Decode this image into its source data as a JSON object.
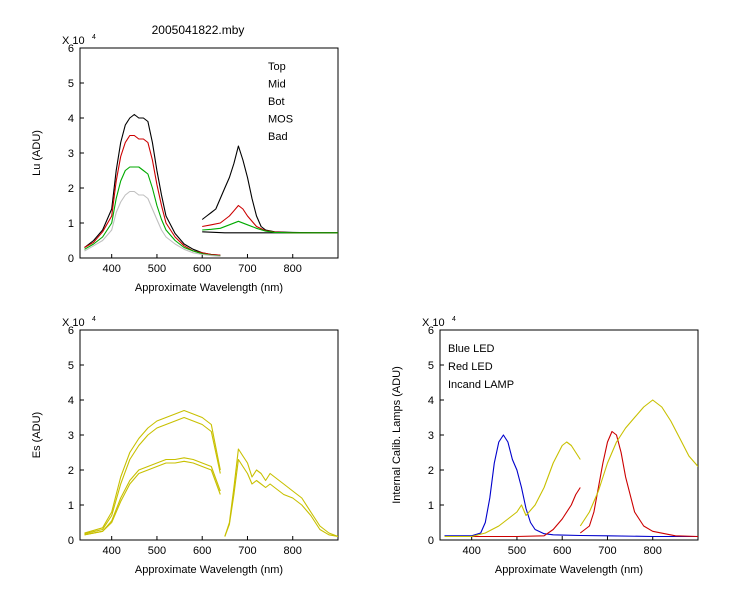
{
  "window": {
    "title": "2005041822.mby"
  },
  "chart_data": [
    {
      "id": "lu",
      "type": "line",
      "xlabel": "Approximate Wavelength (nm)",
      "ylabel": "Lu (ADU)",
      "exponent_label": "X 10",
      "exponent_sup": "4",
      "xlim": [
        330,
        900
      ],
      "ylim": [
        0,
        6
      ],
      "xticks": [
        400,
        500,
        600,
        700,
        800
      ],
      "yticks": [
        0,
        1,
        2,
        3,
        4,
        5,
        6
      ],
      "legend": {
        "placement": "top-right"
      },
      "series": [
        {
          "name": "Top",
          "color": "#000000",
          "segments": [
            {
              "x": [
                340,
                360,
                380,
                400,
                410,
                420,
                430,
                440,
                450,
                460,
                470,
                480,
                490,
                500,
                510,
                520,
                540,
                560,
                580,
                600,
                620,
                640
              ],
              "y": [
                0.3,
                0.5,
                0.8,
                1.4,
                2.5,
                3.3,
                3.8,
                4.0,
                4.1,
                4.0,
                4.0,
                3.9,
                3.3,
                2.5,
                1.8,
                1.2,
                0.7,
                0.4,
                0.25,
                0.15,
                0.1,
                0.08
              ]
            },
            {
              "x": [
                600,
                610,
                620,
                630,
                640,
                650,
                660,
                670,
                680,
                690,
                700,
                710,
                720,
                730,
                740,
                760,
                800,
                850,
                900
              ],
              "y": [
                1.1,
                1.2,
                1.3,
                1.4,
                1.7,
                2.0,
                2.3,
                2.7,
                3.2,
                2.8,
                2.3,
                1.7,
                1.2,
                0.9,
                0.8,
                0.75,
                0.73,
                0.72,
                0.72
              ]
            },
            {
              "x": [
                600,
                650,
                700,
                750,
                800,
                850,
                900
              ],
              "y": [
                0.75,
                0.72,
                0.72,
                0.72,
                0.72,
                0.72,
                0.72
              ]
            }
          ]
        },
        {
          "name": "Mid",
          "color": "#cc0000",
          "segments": [
            {
              "x": [
                340,
                360,
                380,
                400,
                410,
                420,
                430,
                440,
                450,
                460,
                470,
                480,
                490,
                500,
                510,
                520,
                540,
                560,
                580,
                600,
                620,
                640
              ],
              "y": [
                0.3,
                0.45,
                0.75,
                1.2,
                2.2,
                2.9,
                3.3,
                3.5,
                3.5,
                3.4,
                3.4,
                3.3,
                2.8,
                2.1,
                1.5,
                1.0,
                0.6,
                0.35,
                0.2,
                0.15,
                0.1,
                0.08
              ]
            },
            {
              "x": [
                600,
                620,
                640,
                660,
                670,
                680,
                690,
                700,
                720,
                740,
                760,
                800,
                900
              ],
              "y": [
                0.9,
                0.95,
                1.0,
                1.2,
                1.35,
                1.5,
                1.4,
                1.2,
                0.9,
                0.78,
                0.74,
                0.72,
                0.72
              ]
            }
          ]
        },
        {
          "name": "Bot",
          "color": "#00aa00",
          "segments": [
            {
              "x": [
                340,
                360,
                380,
                400,
                410,
                420,
                430,
                440,
                450,
                460,
                470,
                480,
                490,
                500,
                510,
                520,
                540,
                560,
                580,
                600,
                620,
                640
              ],
              "y": [
                0.25,
                0.4,
                0.6,
                1.0,
                1.7,
                2.2,
                2.5,
                2.6,
                2.6,
                2.6,
                2.5,
                2.4,
                2.0,
                1.5,
                1.1,
                0.8,
                0.5,
                0.3,
                0.2,
                0.12,
                0.08,
                0.06
              ]
            },
            {
              "x": [
                600,
                620,
                640,
                660,
                680,
                700,
                720,
                740,
                760,
                800,
                900
              ],
              "y": [
                0.8,
                0.82,
                0.85,
                0.95,
                1.05,
                0.95,
                0.85,
                0.77,
                0.73,
                0.72,
                0.72
              ]
            }
          ]
        },
        {
          "name": "MOS",
          "color": "#0000cc",
          "segments": []
        },
        {
          "name": "Bad",
          "color": "#c0c0c0",
          "segments": [
            {
              "x": [
                340,
                360,
                380,
                400,
                410,
                420,
                430,
                440,
                450,
                460,
                470,
                480,
                490,
                500,
                510,
                520,
                540,
                560,
                580,
                600,
                620,
                640
              ],
              "y": [
                0.2,
                0.35,
                0.5,
                0.8,
                1.3,
                1.6,
                1.8,
                1.9,
                1.9,
                1.8,
                1.8,
                1.7,
                1.4,
                1.1,
                0.8,
                0.6,
                0.4,
                0.25,
                0.15,
                0.1,
                0.07,
                0.05
              ]
            }
          ]
        }
      ]
    },
    {
      "id": "es",
      "type": "line",
      "xlabel": "Approximate Wavelength (nm)",
      "ylabel": "Es  (ADU)",
      "exponent_label": "X 10",
      "exponent_sup": "4",
      "xlim": [
        330,
        900
      ],
      "ylim": [
        0,
        6
      ],
      "xticks": [
        400,
        500,
        600,
        700,
        800
      ],
      "yticks": [
        0,
        1,
        2,
        3,
        4,
        5,
        6
      ],
      "series": [
        {
          "color": "#c8c000",
          "segments": [
            {
              "x": [
                340,
                380,
                400,
                420,
                440,
                460,
                480,
                500,
                520,
                540,
                560,
                580,
                600,
                620,
                640
              ],
              "y": [
                0.2,
                0.35,
                0.8,
                1.8,
                2.5,
                2.9,
                3.2,
                3.4,
                3.5,
                3.6,
                3.7,
                3.6,
                3.5,
                3.3,
                2.0
              ]
            },
            {
              "x": [
                340,
                380,
                400,
                420,
                440,
                460,
                480,
                500,
                520,
                540,
                560,
                580,
                600,
                620,
                640
              ],
              "y": [
                0.18,
                0.3,
                0.7,
                1.6,
                2.3,
                2.7,
                3.0,
                3.2,
                3.3,
                3.4,
                3.5,
                3.4,
                3.3,
                3.1,
                1.9
              ]
            },
            {
              "x": [
                340,
                380,
                400,
                420,
                440,
                460,
                480,
                500,
                520,
                540,
                560,
                580,
                600,
                620,
                640
              ],
              "y": [
                0.15,
                0.25,
                0.55,
                1.2,
                1.7,
                2.0,
                2.1,
                2.2,
                2.3,
                2.3,
                2.35,
                2.3,
                2.2,
                2.1,
                1.4
              ]
            },
            {
              "x": [
                340,
                380,
                400,
                420,
                440,
                460,
                480,
                500,
                520,
                540,
                560,
                580,
                600,
                620,
                640
              ],
              "y": [
                0.15,
                0.25,
                0.5,
                1.1,
                1.6,
                1.9,
                2.0,
                2.1,
                2.2,
                2.2,
                2.25,
                2.2,
                2.1,
                2.0,
                1.3
              ]
            },
            {
              "x": [
                650,
                660,
                670,
                680,
                690,
                700,
                710,
                720,
                730,
                740,
                750,
                760,
                780,
                800,
                820,
                840,
                860,
                880,
                900
              ],
              "y": [
                0.1,
                0.5,
                1.5,
                2.6,
                2.4,
                2.2,
                1.8,
                2.0,
                1.9,
                1.7,
                1.9,
                1.8,
                1.6,
                1.4,
                1.2,
                0.8,
                0.4,
                0.2,
                0.1
              ]
            },
            {
              "x": [
                650,
                660,
                670,
                680,
                690,
                700,
                710,
                720,
                730,
                740,
                750,
                760,
                780,
                800,
                820,
                840,
                860,
                880,
                900
              ],
              "y": [
                0.1,
                0.45,
                1.3,
                2.3,
                2.1,
                1.9,
                1.6,
                1.7,
                1.6,
                1.5,
                1.6,
                1.5,
                1.3,
                1.2,
                1.0,
                0.7,
                0.3,
                0.15,
                0.1
              ]
            }
          ]
        }
      ]
    },
    {
      "id": "lamps",
      "type": "line",
      "xlabel": "Approximate Wavelength (nm)",
      "ylabel": "Internal Calib. Lamps (ADU)",
      "exponent_label": "X 10",
      "exponent_sup": "4",
      "xlim": [
        330,
        900
      ],
      "ylim": [
        0,
        6
      ],
      "xticks": [
        400,
        500,
        600,
        700,
        800
      ],
      "yticks": [
        0,
        1,
        2,
        3,
        4,
        5,
        6
      ],
      "legend": {
        "placement": "top-left"
      },
      "series": [
        {
          "name": "Blue LED",
          "color": "#0000cc",
          "segments": [
            {
              "x": [
                340,
                400,
                420,
                430,
                440,
                450,
                460,
                470,
                480,
                490,
                500,
                510,
                520,
                530,
                540,
                560,
                580,
                600,
                640,
                700,
                800,
                900
              ],
              "y": [
                0.12,
                0.12,
                0.2,
                0.5,
                1.2,
                2.2,
                2.8,
                3.0,
                2.8,
                2.3,
                2.0,
                1.5,
                0.9,
                0.5,
                0.3,
                0.18,
                0.15,
                0.14,
                0.13,
                0.12,
                0.1,
                0.1
              ]
            }
          ]
        },
        {
          "name": "Red LED",
          "color": "#cc0000",
          "segments": [
            {
              "x": [
                340,
                400,
                500,
                560,
                580,
                600,
                620,
                630,
                640
              ],
              "y": [
                0.1,
                0.1,
                0.1,
                0.12,
                0.3,
                0.6,
                1.0,
                1.3,
                1.5
              ]
            },
            {
              "x": [
                640,
                660,
                670,
                680,
                690,
                700,
                710,
                720,
                730,
                740,
                760,
                780,
                800,
                850,
                900
              ],
              "y": [
                0.2,
                0.4,
                0.8,
                1.5,
                2.2,
                2.8,
                3.1,
                3.0,
                2.5,
                1.8,
                0.8,
                0.4,
                0.25,
                0.12,
                0.1
              ]
            }
          ]
        },
        {
          "name": "Incand LAMP",
          "color": "#c8c000",
          "segments": [
            {
              "x": [
                340,
                400,
                430,
                460,
                480,
                500,
                510,
                520,
                540,
                560,
                580,
                600,
                610,
                620,
                630,
                640
              ],
              "y": [
                0.1,
                0.1,
                0.2,
                0.4,
                0.6,
                0.8,
                1.0,
                0.7,
                1.0,
                1.5,
                2.2,
                2.7,
                2.8,
                2.7,
                2.5,
                2.3
              ]
            },
            {
              "x": [
                640,
                660,
                680,
                700,
                720,
                740,
                760,
                780,
                800,
                820,
                840,
                860,
                880,
                900
              ],
              "y": [
                0.4,
                0.8,
                1.4,
                2.2,
                2.8,
                3.2,
                3.5,
                3.8,
                4.0,
                3.8,
                3.4,
                2.9,
                2.4,
                2.1
              ]
            }
          ]
        }
      ]
    }
  ]
}
